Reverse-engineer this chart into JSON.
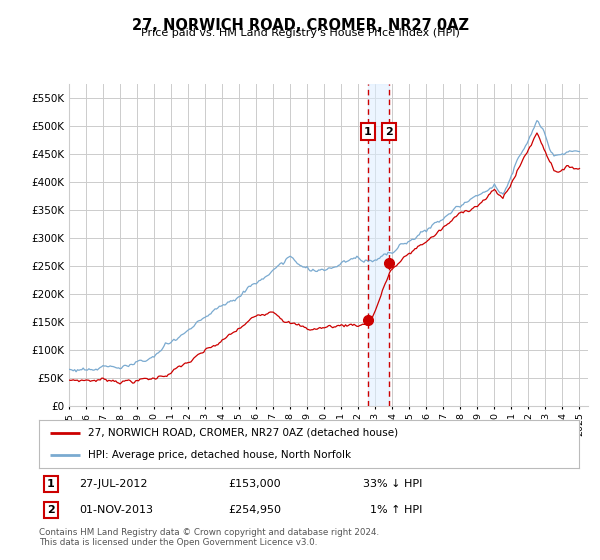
{
  "title": "27, NORWICH ROAD, CROMER, NR27 0AZ",
  "subtitle": "Price paid vs. HM Land Registry's House Price Index (HPI)",
  "ylim": [
    0,
    575000
  ],
  "yticks": [
    0,
    50000,
    100000,
    150000,
    200000,
    250000,
    300000,
    350000,
    400000,
    450000,
    500000,
    550000
  ],
  "ytick_labels": [
    "£0",
    "£50K",
    "£100K",
    "£150K",
    "£200K",
    "£250K",
    "£300K",
    "£350K",
    "£400K",
    "£450K",
    "£500K",
    "£550K"
  ],
  "sale1_date": 2012.57,
  "sale1_price": 153000,
  "sale2_date": 2013.83,
  "sale2_price": 254950,
  "legend_line1": "27, NORWICH ROAD, CROMER, NR27 0AZ (detached house)",
  "legend_line2": "HPI: Average price, detached house, North Norfolk",
  "footer": "Contains HM Land Registry data © Crown copyright and database right 2024.\nThis data is licensed under the Open Government Licence v3.0.",
  "hpi_color": "#7aaad0",
  "price_color": "#cc0000",
  "bg_color": "#ffffff",
  "grid_color": "#cccccc",
  "vline_color_red": "#cc0000",
  "vline_color_blue": "#aabbdd",
  "box_bg": "#ddeeff"
}
